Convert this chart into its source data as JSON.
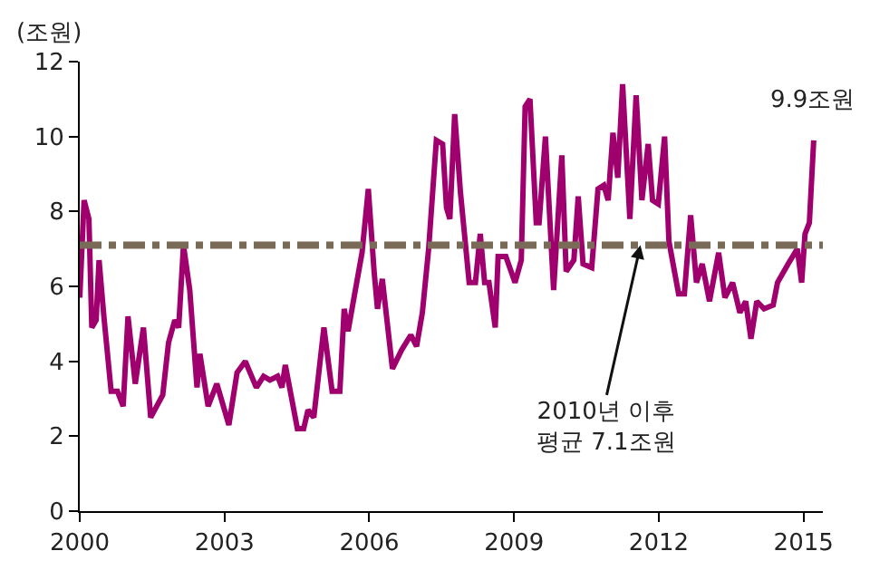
{
  "chart_data": {
    "type": "line",
    "ylabel": "(조원)",
    "x": [
      2000.0,
      2000.09,
      2000.19,
      2000.25,
      2000.34,
      2000.4,
      2000.5,
      2000.65,
      2000.78,
      2000.9,
      2001.0,
      2001.15,
      2001.32,
      2001.47,
      2001.72,
      2001.84,
      2001.97,
      2002.05,
      2002.15,
      2002.28,
      2002.43,
      2002.49,
      2002.66,
      2002.84,
      2003.09,
      2003.26,
      2003.43,
      2003.66,
      2003.81,
      2003.94,
      2004.1,
      2004.19,
      2004.26,
      2004.51,
      2004.64,
      2004.73,
      2004.85,
      2005.06,
      2005.23,
      2005.39,
      2005.48,
      2005.56,
      2005.67,
      2005.85,
      2005.98,
      2006.1,
      2006.17,
      2006.27,
      2006.48,
      2006.67,
      2006.86,
      2006.98,
      2007.1,
      2007.23,
      2007.39,
      2007.52,
      2007.6,
      2007.67,
      2007.77,
      2007.89,
      2008.07,
      2008.2,
      2008.3,
      2008.39,
      2008.48,
      2008.61,
      2008.67,
      2008.83,
      2009.02,
      2009.15,
      2009.23,
      2009.33,
      2009.46,
      2009.52,
      2009.65,
      2009.82,
      2009.99,
      2010.08,
      2010.24,
      2010.33,
      2010.43,
      2010.61,
      2010.74,
      2010.86,
      2010.95,
      2011.05,
      2011.15,
      2011.25,
      2011.4,
      2011.53,
      2011.65,
      2011.78,
      2011.87,
      2011.99,
      2012.12,
      2012.21,
      2012.41,
      2012.53,
      2012.66,
      2012.78,
      2012.9,
      2013.05,
      2013.24,
      2013.37,
      2013.53,
      2013.68,
      2013.8,
      2013.91,
      2014.03,
      2014.18,
      2014.37,
      2014.46,
      2014.68,
      2014.87,
      2014.96,
      2015.03,
      2015.12,
      2015.21
    ],
    "series": [
      {
        "color": "#a0006e",
        "values": [
          5.7,
          8.3,
          7.8,
          4.9,
          5.1,
          6.7,
          5.2,
          3.2,
          3.2,
          2.8,
          5.2,
          3.4,
          4.9,
          2.5,
          3.1,
          4.5,
          5.1,
          4.9,
          7.1,
          5.9,
          3.3,
          4.2,
          2.8,
          3.4,
          2.3,
          3.7,
          4.0,
          3.3,
          3.6,
          3.5,
          3.6,
          3.3,
          3.9,
          2.2,
          2.2,
          2.7,
          2.5,
          4.9,
          3.2,
          3.2,
          5.4,
          4.8,
          5.6,
          6.9,
          8.6,
          6.4,
          5.4,
          6.2,
          3.8,
          4.3,
          4.7,
          4.4,
          5.3,
          7.0,
          9.9,
          9.8,
          8.1,
          7.8,
          10.6,
          8.5,
          6.1,
          6.1,
          7.4,
          6.1,
          6.1,
          4.9,
          6.8,
          6.8,
          6.1,
          6.7,
          10.8,
          11.0,
          7.7,
          7.7,
          10.0,
          5.9,
          9.5,
          6.4,
          6.7,
          8.4,
          6.6,
          6.5,
          8.6,
          8.7,
          8.3,
          10.1,
          8.9,
          11.4,
          7.8,
          11.1,
          8.3,
          9.8,
          8.3,
          8.2,
          10.0,
          7.2,
          5.8,
          5.8,
          7.9,
          6.1,
          6.6,
          5.6,
          6.9,
          5.7,
          6.1,
          5.3,
          5.6,
          4.6,
          5.6,
          5.4,
          5.5,
          6.1,
          6.6,
          7.0,
          6.1,
          7.4,
          7.7,
          9.9
        ]
      }
    ],
    "xlim": [
      2000,
      2015.4
    ],
    "xticks": [
      2000,
      2003,
      2006,
      2009,
      2012,
      2015
    ],
    "ylim": [
      0,
      12
    ],
    "yticks": [
      0,
      2,
      4,
      6,
      8,
      10,
      12
    ],
    "ref_lines": [
      {
        "axis": "y",
        "value": 7.1,
        "color": "#7a6a58",
        "line_style": "dashdot"
      }
    ],
    "annotations": [
      {
        "text": "9.9조원",
        "x": 2015.21,
        "y": 9.9
      },
      {
        "text": "2010년 이후\n평균 7.1조원",
        "x": 2011.62,
        "y": 7.1
      }
    ],
    "marker": "none",
    "line_style": "solid"
  }
}
